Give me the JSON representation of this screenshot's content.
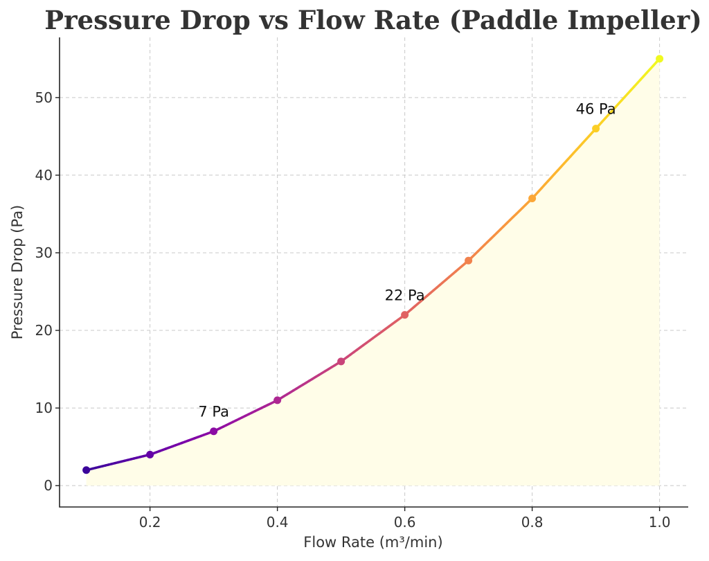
{
  "chart_data": {
    "type": "line",
    "title": "Pressure Drop vs Flow Rate (Paddle Impeller)",
    "xlabel": "Flow Rate (m³/min)",
    "ylabel": "Pressure Drop (Pa)",
    "x": [
      0.1,
      0.2,
      0.3,
      0.4,
      0.5,
      0.6,
      0.7,
      0.8,
      0.9,
      1.0
    ],
    "series": [
      {
        "values": [
          2,
          4,
          7,
          11,
          16,
          22,
          29,
          37,
          46,
          55
        ]
      }
    ],
    "xlim": [
      0.058,
      1.045
    ],
    "ylim": [
      -2.75,
      57.75
    ],
    "xticks": [
      0.2,
      0.4,
      0.6,
      0.8,
      1.0
    ],
    "xtick_labels": [
      "0.2",
      "0.4",
      "0.6",
      "0.8",
      "1.0"
    ],
    "yticks": [
      0,
      10,
      20,
      30,
      40,
      50
    ],
    "ytick_labels": [
      "0",
      "10",
      "20",
      "30",
      "40",
      "50"
    ],
    "grid": true,
    "colormap": "plasma",
    "colors": [
      "#3a049a",
      "#5c01a6",
      "#7e03a8",
      "#9c179e",
      "#b52f8c",
      "#cc4778",
      "#de5f65",
      "#ed7953",
      "#f89540",
      "#fdb42f",
      "#fbd524",
      "#f0f921"
    ],
    "fill_color": "#fffde8",
    "annotations": [
      {
        "x": 0.3,
        "y": 7,
        "text": "7 Pa"
      },
      {
        "x": 0.6,
        "y": 22,
        "text": "22 Pa"
      },
      {
        "x": 0.9,
        "y": 46,
        "text": "46 Pa"
      }
    ]
  }
}
